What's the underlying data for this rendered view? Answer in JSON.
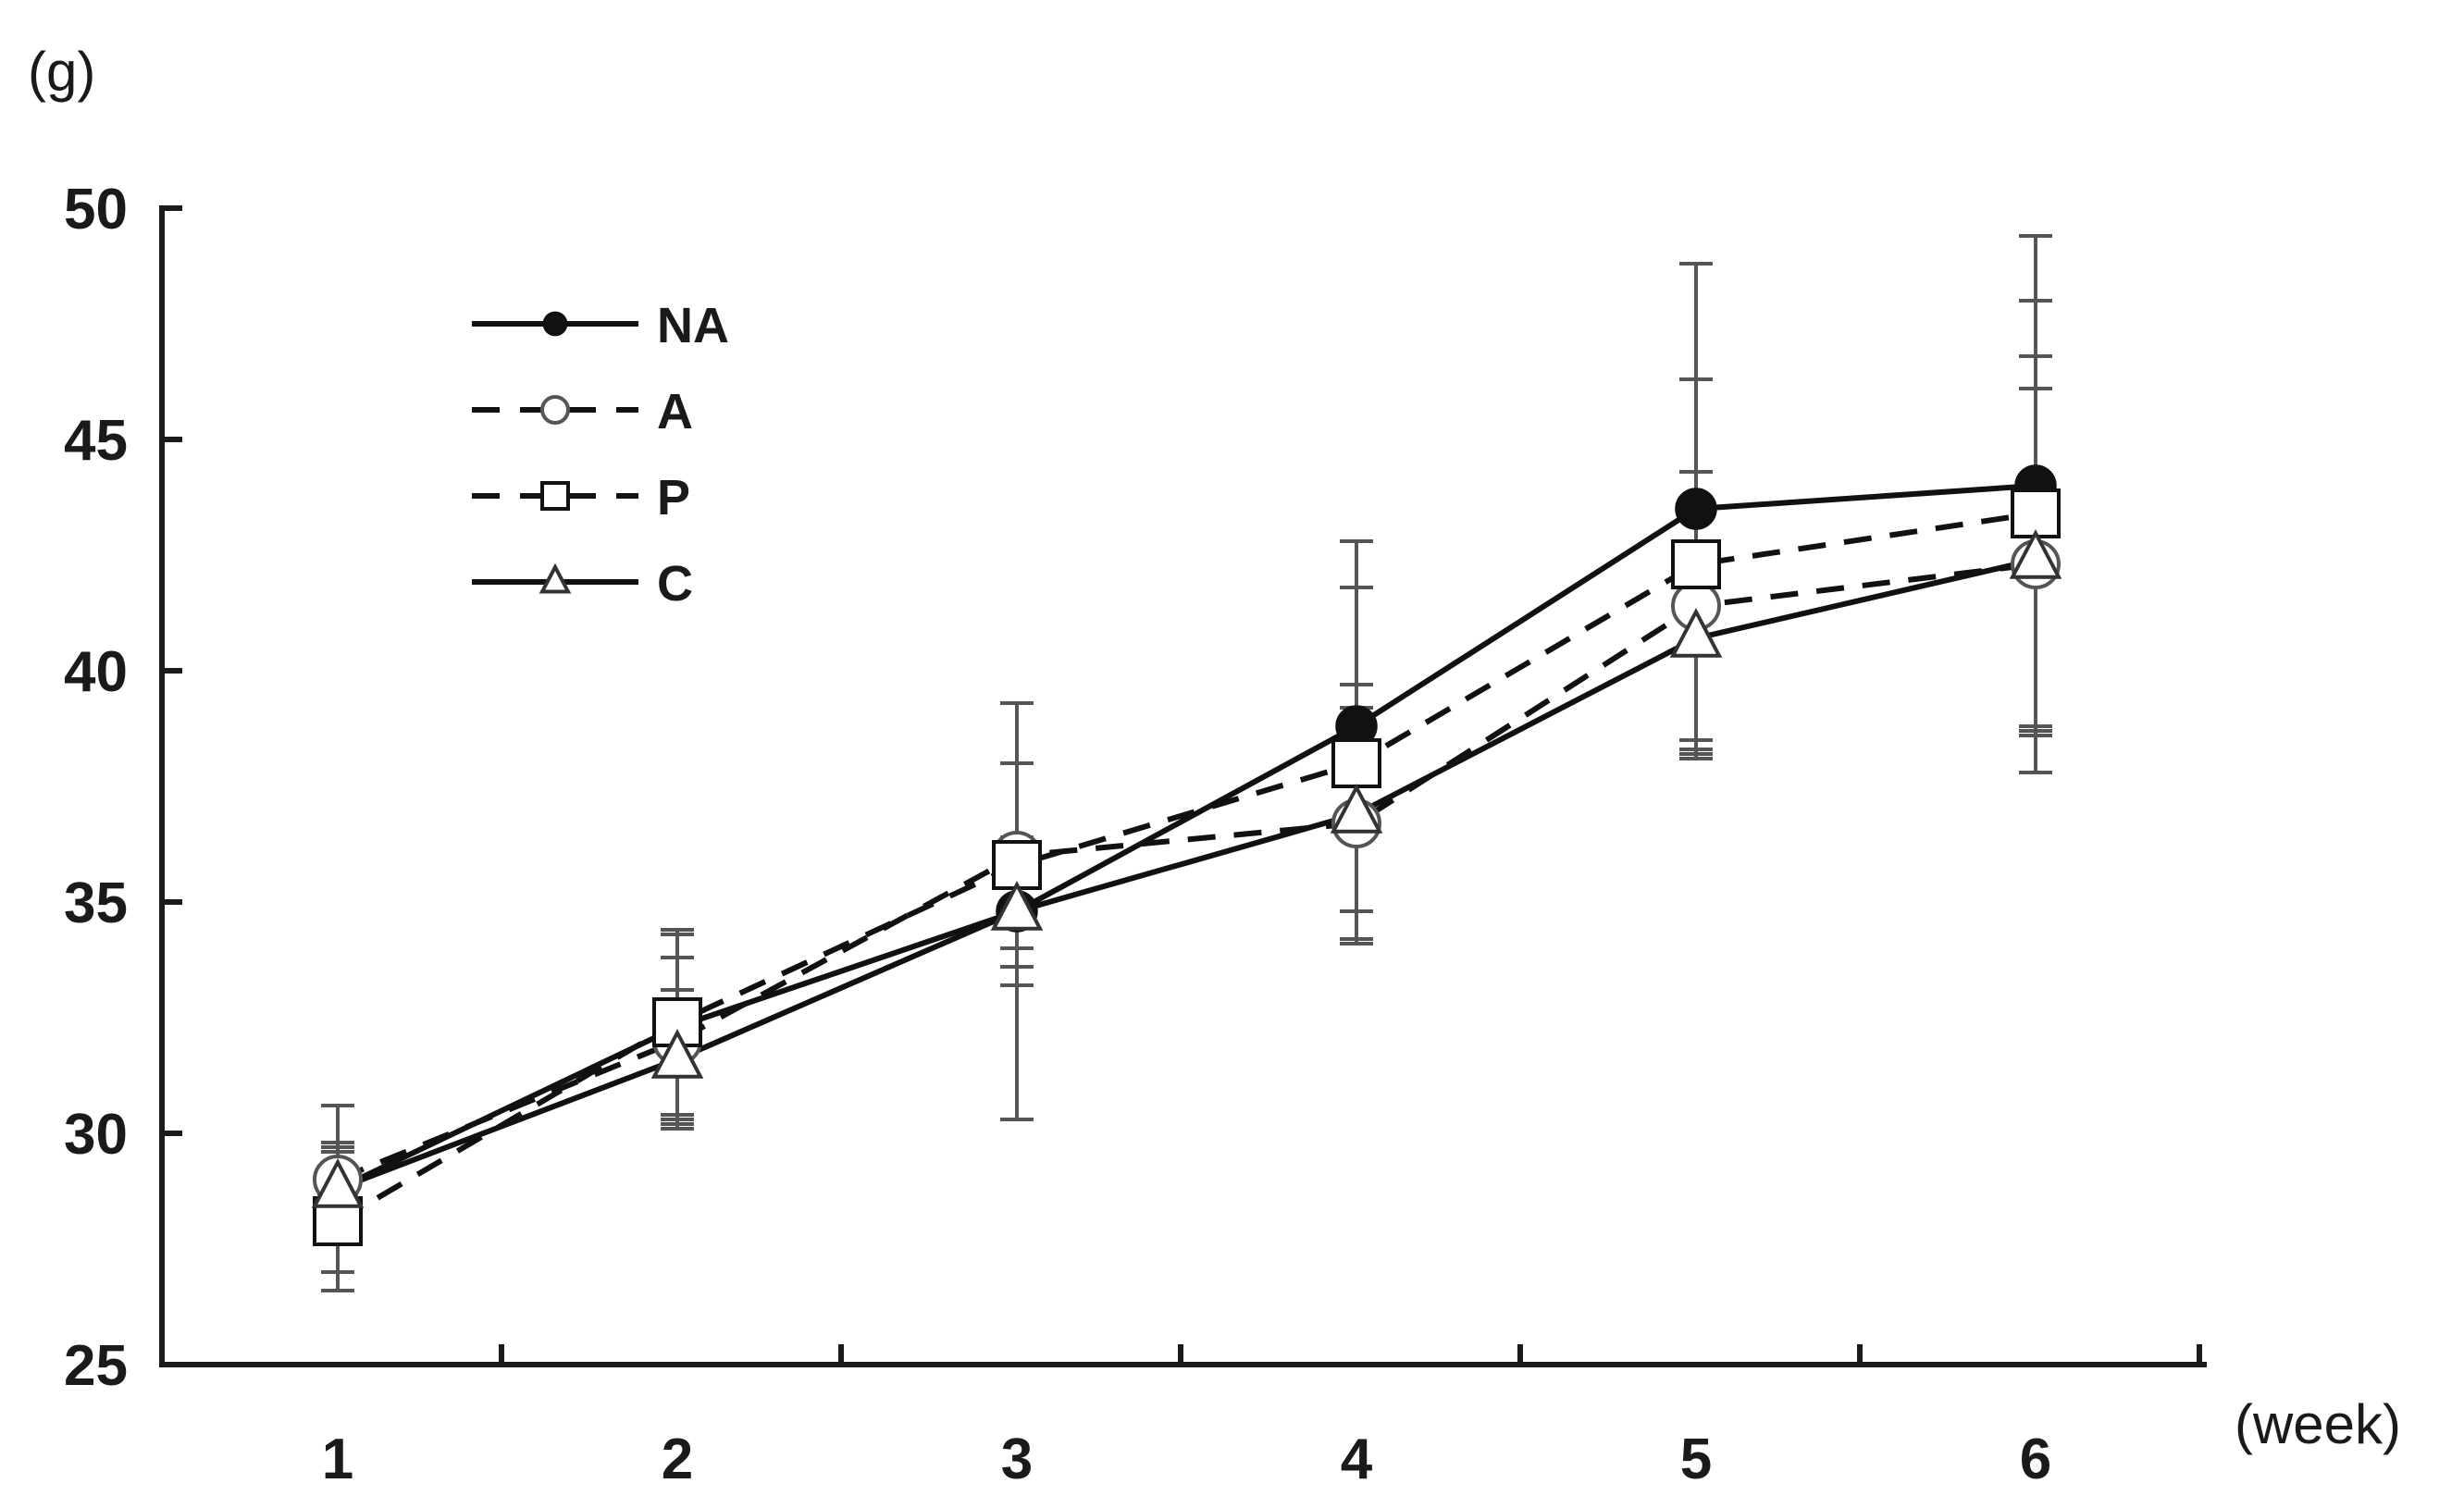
{
  "chart_data": {
    "type": "line",
    "title": "",
    "ylabel": "(g)",
    "xlabel": "(week)",
    "ylim": [
      25,
      50
    ],
    "yticks": [
      25,
      30,
      35,
      40,
      45,
      50
    ],
    "ytick_labels": [
      "25",
      "30",
      "35",
      "40",
      "45",
      "50"
    ],
    "x": [
      1,
      2,
      3,
      4,
      5,
      6
    ],
    "xtick_labels": [
      "1",
      "2",
      "3",
      "4",
      "5",
      "6"
    ],
    "grid": false,
    "legend_position": "top-left",
    "series": [
      {
        "name": "NA",
        "marker": "filled-circle",
        "line_style": "solid",
        "values": [
          28.8,
          32.3,
          34.8,
          38.8,
          43.5,
          44.0
        ],
        "errors": [
          1.8,
          2.0,
          4.5,
          4.0,
          5.3,
          5.4
        ]
      },
      {
        "name": "A",
        "marker": "open-circle",
        "line_style": "dashed",
        "values": [
          29.0,
          32.0,
          36.0,
          36.7,
          41.4,
          42.3
        ],
        "errors": [
          0.8,
          1.8,
          2.0,
          2.5,
          2.9,
          4.5
        ]
      },
      {
        "name": "P",
        "marker": "open-square",
        "line_style": "dashed",
        "values": [
          28.1,
          32.4,
          35.8,
          38.0,
          42.3,
          43.4
        ],
        "errors": [
          1.5,
          2.0,
          2.2,
          3.8,
          4.0,
          4.6
        ]
      },
      {
        "name": "C",
        "marker": "open-triangle",
        "line_style": "solid",
        "values": [
          28.8,
          31.6,
          34.8,
          36.9,
          40.7,
          42.4
        ],
        "errors": [
          0.9,
          1.5,
          1.6,
          2.8,
          2.6,
          3.7
        ]
      }
    ]
  }
}
